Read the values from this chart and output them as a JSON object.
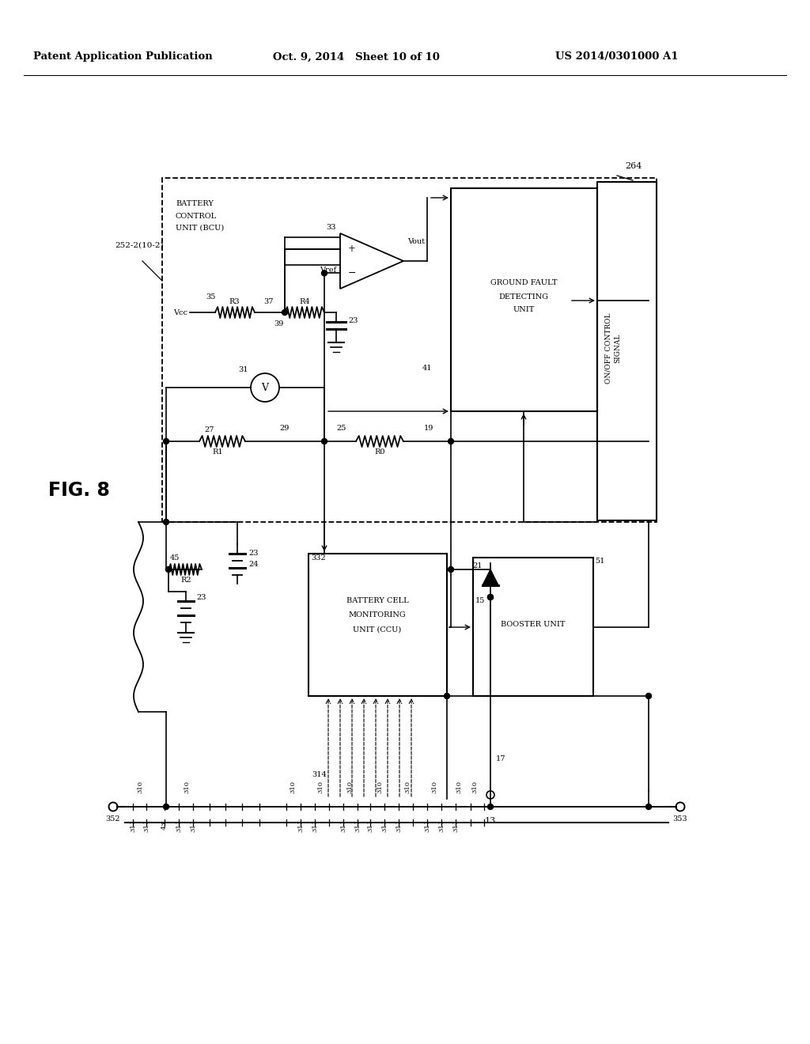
{
  "header_left": "Patent Application Publication",
  "header_mid": "Oct. 9, 2014   Sheet 10 of 10",
  "header_right": "US 2014/0301000 A1",
  "fig_label": "FIG. 8",
  "bg_color": "#ffffff",
  "lc": "#000000"
}
